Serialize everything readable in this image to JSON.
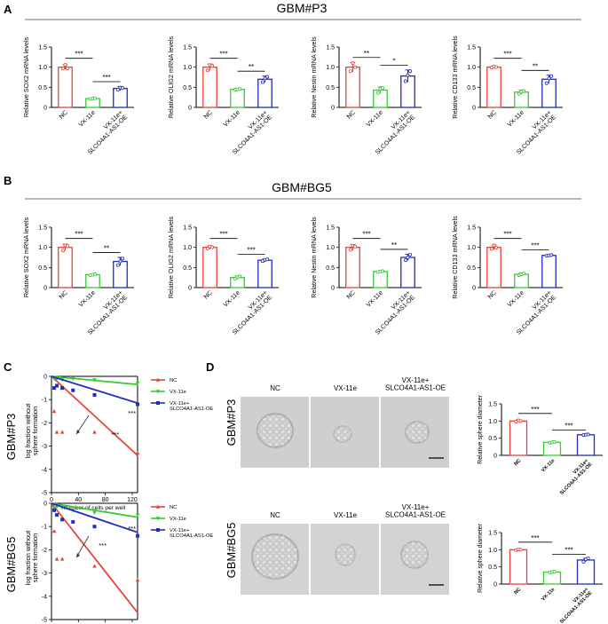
{
  "figure": {
    "panel_labels": [
      "A",
      "B",
      "C",
      "D"
    ],
    "section_titles": [
      "GBM#P3",
      "GBM#BG5"
    ],
    "row_labels": [
      "GBM#P3",
      "GBM#BG5"
    ],
    "colors": {
      "nc": "#e2453b",
      "vx": "#33cc33",
      "oe": "#1f2ec2",
      "axis": "#000000",
      "panel_a_rule": "#444444"
    }
  },
  "chart_data": [
    {
      "id": "A1",
      "type": "bar",
      "section": "GBM#P3",
      "ylabel": "Relative SOX2 mRNA levels",
      "categories": [
        "NC",
        "VX-11e",
        "VX-11e+\nSLCO4A1-AS1-OE"
      ],
      "values": [
        1.0,
        0.22,
        0.47
      ],
      "errors": [
        0.06,
        0.02,
        0.05
      ],
      "points": [
        [
          0.97,
          1.06,
          0.97
        ],
        [
          0.21,
          0.22,
          0.23
        ],
        [
          0.44,
          0.49,
          0.48
        ]
      ],
      "ylim": [
        0,
        1.5
      ],
      "yticks": [
        0,
        0.5,
        1.0,
        1.5
      ],
      "significance": [
        {
          "from": 0,
          "to": 1,
          "label": "***"
        },
        {
          "from": 1,
          "to": 2,
          "label": "***"
        }
      ]
    },
    {
      "id": "A2",
      "type": "bar",
      "section": "GBM#P3",
      "ylabel": "Relative OLIG2 mRNA levels",
      "categories": [
        "NC",
        "VX-11e",
        "VX-11e+\nSLCO4A1-AS1-OE"
      ],
      "values": [
        1.0,
        0.45,
        0.7
      ],
      "errors": [
        0.08,
        0.02,
        0.08
      ],
      "points": [
        [
          0.92,
          1.05,
          1.03
        ],
        [
          0.44,
          0.45,
          0.46
        ],
        [
          0.63,
          0.72,
          0.76
        ]
      ],
      "ylim": [
        0,
        1.5
      ],
      "yticks": [
        0,
        0.5,
        1.0,
        1.5
      ],
      "significance": [
        {
          "from": 0,
          "to": 1,
          "label": "***"
        },
        {
          "from": 1,
          "to": 2,
          "label": "**"
        }
      ]
    },
    {
      "id": "A3",
      "type": "bar",
      "section": "GBM#P3",
      "ylabel": "Relative Nestin mRNA levels",
      "categories": [
        "NC",
        "VX-11e",
        "VX-11e+\nSLCO4A1-AS1-OE"
      ],
      "values": [
        1.0,
        0.43,
        0.78
      ],
      "errors": [
        0.12,
        0.08,
        0.15
      ],
      "points": [
        [
          0.9,
          1.1,
          1.0
        ],
        [
          0.36,
          0.46,
          0.48
        ],
        [
          0.65,
          0.8,
          0.9
        ]
      ],
      "ylim": [
        0,
        1.5
      ],
      "yticks": [
        0,
        0.5,
        1.0,
        1.5
      ],
      "significance": [
        {
          "from": 0,
          "to": 1,
          "label": "**"
        },
        {
          "from": 1,
          "to": 2,
          "label": "*"
        }
      ]
    },
    {
      "id": "A4",
      "type": "bar",
      "section": "GBM#P3",
      "ylabel": "Relative CD133 mRNA levels",
      "categories": [
        "NC",
        "VX-11e",
        "VX-11e+\nSLCO4A1-AS1-OE"
      ],
      "values": [
        1.0,
        0.38,
        0.7
      ],
      "errors": [
        0.03,
        0.05,
        0.1
      ],
      "points": [
        [
          0.99,
          1.01,
          1.0
        ],
        [
          0.34,
          0.39,
          0.41
        ],
        [
          0.6,
          0.72,
          0.78
        ]
      ],
      "ylim": [
        0,
        1.5
      ],
      "yticks": [
        0,
        0.5,
        1.0,
        1.5
      ],
      "significance": [
        {
          "from": 0,
          "to": 1,
          "label": "***"
        },
        {
          "from": 1,
          "to": 2,
          "label": "**"
        }
      ]
    },
    {
      "id": "B1",
      "type": "bar",
      "section": "GBM#BG5",
      "ylabel": "Relative SOX2 mRNA levels",
      "categories": [
        "NC",
        "VX-11e",
        "VX-11e+\nSLCO4A1-AS1-OE"
      ],
      "values": [
        1.0,
        0.32,
        0.65
      ],
      "errors": [
        0.08,
        0.02,
        0.1
      ],
      "points": [
        [
          0.92,
          1.05,
          1.03
        ],
        [
          0.31,
          0.32,
          0.33
        ],
        [
          0.56,
          0.65,
          0.72
        ]
      ],
      "ylim": [
        0,
        1.5
      ],
      "yticks": [
        0,
        0.5,
        1.0,
        1.5
      ],
      "significance": [
        {
          "from": 0,
          "to": 1,
          "label": "***"
        },
        {
          "from": 1,
          "to": 2,
          "label": "**"
        }
      ]
    },
    {
      "id": "B2",
      "type": "bar",
      "section": "GBM#BG5",
      "ylabel": "Relative OLIG2 mRNA levels",
      "categories": [
        "NC",
        "VX-11e",
        "VX-11e+\nSLCO4A1-AS1-OE"
      ],
      "values": [
        1.0,
        0.25,
        0.68
      ],
      "errors": [
        0.04,
        0.04,
        0.03
      ],
      "points": [
        [
          0.97,
          1.02,
          1.0
        ],
        [
          0.22,
          0.26,
          0.28
        ],
        [
          0.66,
          0.69,
          0.7
        ]
      ],
      "ylim": [
        0,
        1.5
      ],
      "yticks": [
        0,
        0.5,
        1.0,
        1.5
      ],
      "significance": [
        {
          "from": 0,
          "to": 1,
          "label": "***"
        },
        {
          "from": 1,
          "to": 2,
          "label": "***"
        }
      ]
    },
    {
      "id": "B3",
      "type": "bar",
      "section": "GBM#BG5",
      "ylabel": "Relative Nestin mRNA levels",
      "categories": [
        "NC",
        "VX-11e",
        "VX-11e+\nSLCO4A1-AS1-OE"
      ],
      "values": [
        1.0,
        0.4,
        0.75
      ],
      "errors": [
        0.07,
        0.02,
        0.08
      ],
      "points": [
        [
          0.94,
          1.04,
          1.02
        ],
        [
          0.39,
          0.4,
          0.41
        ],
        [
          0.68,
          0.75,
          0.82
        ]
      ],
      "ylim": [
        0,
        1.5
      ],
      "yticks": [
        0,
        0.5,
        1.0,
        1.5
      ],
      "significance": [
        {
          "from": 0,
          "to": 1,
          "label": "***"
        },
        {
          "from": 1,
          "to": 2,
          "label": "**"
        }
      ]
    },
    {
      "id": "B4",
      "type": "bar",
      "section": "GBM#BG5",
      "ylabel": "Relative CD133 mRNA levels",
      "categories": [
        "NC",
        "VX-11e",
        "VX-11e+\nSLCO4A1-AS1-OE"
      ],
      "values": [
        1.0,
        0.33,
        0.8
      ],
      "errors": [
        0.06,
        0.03,
        0.02
      ],
      "points": [
        [
          0.96,
          1.05,
          0.99
        ],
        [
          0.31,
          0.33,
          0.35
        ],
        [
          0.79,
          0.8,
          0.81
        ]
      ],
      "ylim": [
        0,
        1.5
      ],
      "yticks": [
        0,
        0.5,
        1.0,
        1.5
      ],
      "significance": [
        {
          "from": 0,
          "to": 1,
          "label": "***"
        },
        {
          "from": 1,
          "to": 2,
          "label": "***"
        }
      ]
    },
    {
      "id": "C1",
      "type": "line",
      "row": "GBM#P3",
      "xlabel": "number of cells per well",
      "ylabel": "log fraction without\nsphere formation",
      "xlim": [
        0,
        128
      ],
      "ylim": [
        -5,
        0
      ],
      "xticks": [
        0,
        40,
        80,
        120
      ],
      "yticks": [
        0,
        -1,
        -2,
        -3,
        -4,
        -5
      ],
      "series": [
        {
          "name": "NC",
          "marker": "triangle",
          "line": [
            [
              0,
              0
            ],
            [
              128,
              -3.4
            ]
          ],
          "points": [
            [
              4,
              -1.5
            ],
            [
              8,
              -2.4
            ],
            [
              16,
              -2.4
            ],
            [
              64,
              -2.4
            ],
            [
              128,
              -3.3
            ]
          ]
        },
        {
          "name": "VX-11e",
          "marker": "triangle-down",
          "line": [
            [
              0,
              0
            ],
            [
              128,
              -0.35
            ]
          ],
          "points": [
            [
              4,
              -0.1
            ],
            [
              8,
              -0.1
            ],
            [
              16,
              -0.15
            ],
            [
              32,
              -0.1
            ],
            [
              64,
              -0.15
            ],
            [
              128,
              -0.3
            ]
          ]
        },
        {
          "name": "VX-11e+\nSLCO4A1-AS1-OE",
          "marker": "square",
          "line": [
            [
              0,
              0
            ],
            [
              128,
              -1.15
            ]
          ],
          "points": [
            [
              4,
              -0.5
            ],
            [
              8,
              -0.4
            ],
            [
              16,
              -0.5
            ],
            [
              32,
              -0.6
            ],
            [
              64,
              -0.8
            ],
            [
              128,
              -1.2
            ]
          ]
        }
      ],
      "annotations": [
        "***",
        "***"
      ]
    },
    {
      "id": "C2",
      "type": "line",
      "row": "GBM#BG5",
      "xlabel": "number of cells per well",
      "ylabel": "log fraction without\nsphere formation",
      "xlim": [
        0,
        128
      ],
      "ylim": [
        -5,
        0
      ],
      "xticks": [
        0,
        40,
        80,
        120
      ],
      "yticks": [
        0,
        -1,
        -2,
        -3,
        -4,
        -5
      ],
      "series": [
        {
          "name": "NC",
          "marker": "triangle",
          "line": [
            [
              0,
              0
            ],
            [
              128,
              -4.7
            ]
          ],
          "points": [
            [
              4,
              -1.2
            ],
            [
              8,
              -2.4
            ],
            [
              16,
              -2.4
            ],
            [
              64,
              -2.7
            ],
            [
              128,
              -3.3
            ]
          ]
        },
        {
          "name": "VX-11e",
          "marker": "triangle-down",
          "line": [
            [
              0,
              0
            ],
            [
              128,
              -0.6
            ]
          ],
          "points": [
            [
              4,
              -0.2
            ],
            [
              8,
              -0.15
            ],
            [
              16,
              -0.2
            ],
            [
              32,
              -0.3
            ],
            [
              64,
              -0.4
            ],
            [
              128,
              -0.5
            ]
          ]
        },
        {
          "name": "VX-11e+\nSLCO4A1-AS1-OE",
          "marker": "square",
          "line": [
            [
              0,
              0
            ],
            [
              128,
              -1.25
            ]
          ],
          "points": [
            [
              4,
              -0.3
            ],
            [
              8,
              -0.5
            ],
            [
              16,
              -0.7
            ],
            [
              32,
              -0.8
            ],
            [
              64,
              -1.0
            ],
            [
              128,
              -1.4
            ]
          ]
        }
      ],
      "annotations": [
        "***",
        "***"
      ]
    },
    {
      "id": "D1",
      "type": "bar",
      "row": "GBM#P3",
      "ylabel": "Relative sphere diameter",
      "image_labels": [
        "NC",
        "VX-11e",
        "VX-11e+\nSLCO4A1-AS1-OE"
      ],
      "categories": [
        "NC",
        "VX-11e",
        "VX-11e+\nSLCO4A1-AS1-OE"
      ],
      "values": [
        1.0,
        0.38,
        0.6
      ],
      "errors": [
        0.03,
        0.02,
        0.02
      ],
      "points": [
        [
          0.98,
          1.02,
          1.0
        ],
        [
          0.37,
          0.38,
          0.39
        ],
        [
          0.59,
          0.6,
          0.61
        ]
      ],
      "ylim": [
        0,
        1.5
      ],
      "yticks": [
        0,
        0.5,
        1.0,
        1.5
      ],
      "significance": [
        {
          "from": 0,
          "to": 1,
          "label": "***"
        },
        {
          "from": 1,
          "to": 2,
          "label": "***"
        }
      ]
    },
    {
      "id": "D2",
      "type": "bar",
      "row": "GBM#BG5",
      "ylabel": "Relative sphere diameter",
      "image_labels": [
        "NC",
        "VX-11e",
        "VX-11e+\nSLCO4A1-AS1-OE"
      ],
      "categories": [
        "NC",
        "VX-11e",
        "VX-11e+\nSLCO4A1-AS1-OE"
      ],
      "values": [
        1.0,
        0.35,
        0.7
      ],
      "errors": [
        0.01,
        0.02,
        0.05
      ],
      "points": [
        [
          0.99,
          1.01,
          1.0
        ],
        [
          0.34,
          0.35,
          0.36
        ],
        [
          0.65,
          0.72,
          0.75
        ]
      ],
      "ylim": [
        0,
        1.5
      ],
      "yticks": [
        0,
        0.5,
        1.0,
        1.5
      ],
      "significance": [
        {
          "from": 0,
          "to": 1,
          "label": "***"
        },
        {
          "from": 1,
          "to": 2,
          "label": "***"
        }
      ]
    }
  ]
}
